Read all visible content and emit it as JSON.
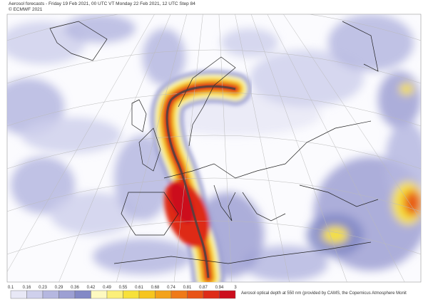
{
  "header": {
    "title": "Aerosol forecasts - Friday 19 Feb 2021, 00 UTC VT Monday 22 Feb 2021, 12 UTC Step 84",
    "copyright": "© ECMWF 2021"
  },
  "legend": {
    "ticks": [
      "0.1",
      "0.16",
      "0.23",
      "0.29",
      "0.36",
      "0.42",
      "0.49",
      "0.55",
      "0.61",
      "0.68",
      "0.74",
      "0.81",
      "0.87",
      "0.94",
      "3"
    ],
    "colors": [
      "#e8e8f6",
      "#cfd0ec",
      "#b5b7e0",
      "#9da0d3",
      "#8389c6",
      "#fdf9c0",
      "#fbef7a",
      "#f7e13b",
      "#f6c51f",
      "#f3a21a",
      "#ef7a18",
      "#e85417",
      "#de2c18",
      "#cc0e1e"
    ],
    "caption": "Aerosol optical depth at 550 nm (provided by CAMS, the Copernicus Atmosphere Monit"
  }
}
